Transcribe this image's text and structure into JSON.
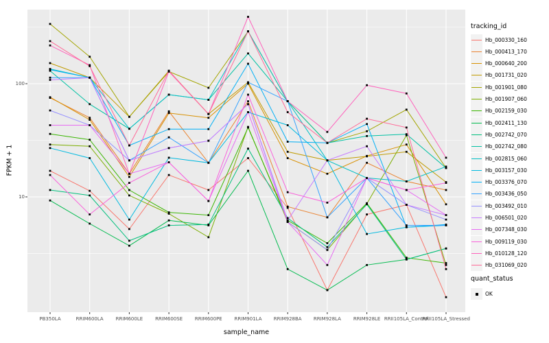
{
  "page": {
    "background": "#FFFFFF",
    "panel_background": "#EBEBEB",
    "gridline_color": "#FFFFFF",
    "axis_text_color": "#4D4D4D",
    "tick_mark_color": "#333333",
    "legend_key_background": "#F2F2F2"
  },
  "axes": {
    "x_title": "sample_name",
    "y_title": "FPKM + 1"
  },
  "legend": {
    "tracking_title": "tracking_id",
    "quant_title": "quant_status",
    "quant_entries": [
      {
        "label": "OK",
        "marker": "black-square"
      }
    ]
  },
  "chart_data": {
    "type": "line",
    "title": "",
    "xlabel": "sample_name",
    "ylabel": "FPKM + 1",
    "y_scale": "log10",
    "ylim": [
      0.96,
      452
    ],
    "y_major_ticks": [
      {
        "label": "100",
        "value": 100
      },
      {
        "label": "10",
        "value": 10
      }
    ],
    "y_minor_gridlines": [
      316.23,
      31.62,
      3.16
    ],
    "grid": true,
    "legend_position": "right",
    "marker": "black-square",
    "point_status": "OK",
    "categories": [
      "PB350LA",
      "RRIM600LA",
      "RRIM600LE",
      "RRIM600SE",
      "RRIM600PE",
      "RRIM901LA",
      "RRIM928BA",
      "RRIM928LA",
      "RRIM928LE",
      "RRII105LA_Control",
      "RRII105LA_Stressed"
    ],
    "series": [
      {
        "name": "Hb_000330_160",
        "color": "#F8766D",
        "values": [
          17,
          11.3,
          5.2,
          15.6,
          11.5,
          22,
          8,
          1.5,
          7,
          8.5,
          1.3
        ]
      },
      {
        "name": "Hb_000413_170",
        "color": "#EA8331",
        "values": [
          75,
          50,
          16,
          57,
          20,
          70,
          8.2,
          6.6,
          20,
          13.7,
          11.5
        ]
      },
      {
        "name": "Hb_000640_200",
        "color": "#D89000",
        "values": [
          76,
          48,
          15,
          55,
          50,
          100,
          22,
          16,
          23,
          29,
          8.6
        ]
      },
      {
        "name": "Hb_001731_020",
        "color": "#C09B00",
        "values": [
          152,
          113,
          51,
          130,
          54,
          103,
          25,
          21,
          22.8,
          25,
          13.5
        ]
      },
      {
        "name": "Hb_001901_080",
        "color": "#A3A500",
        "values": [
          337,
          173,
          51,
          128,
          92,
          290,
          70,
          30,
          38,
          59,
          18
        ]
      },
      {
        "name": "Hb_001907_060",
        "color": "#7CAE00",
        "values": [
          29,
          28,
          10.3,
          7.1,
          4.4,
          41.5,
          6,
          3.4,
          8.7,
          35,
          2.5
        ]
      },
      {
        "name": "Hb_002159_030",
        "color": "#39B600",
        "values": [
          36,
          32,
          11.5,
          7.3,
          6.9,
          41,
          6.2,
          3.9,
          8.8,
          2.9,
          2.6
        ]
      },
      {
        "name": "Hb_002411_130",
        "color": "#00BB4E",
        "values": [
          9.3,
          5.8,
          3.7,
          6.2,
          5.6,
          17,
          2.3,
          1.5,
          2.5,
          2.8,
          3.5
        ]
      },
      {
        "name": "Hb_002742_070",
        "color": "#00BF7D",
        "values": [
          11.5,
          10.3,
          4.1,
          5.6,
          5.7,
          26.7,
          6.5,
          3.6,
          8.6,
          2.8,
          3.5
        ]
      },
      {
        "name": "Hb_002742_080",
        "color": "#00C1A3",
        "values": [
          130,
          66,
          40,
          80,
          72,
          185,
          70,
          30,
          34.5,
          35.8,
          18
        ]
      },
      {
        "name": "Hb_002815_060",
        "color": "#00BFC4",
        "values": [
          135,
          113,
          40,
          80,
          72,
          290,
          70,
          21,
          14.7,
          13.7,
          18.5
        ]
      },
      {
        "name": "Hb_003157_030",
        "color": "#00BAE0",
        "values": [
          27,
          22,
          6.3,
          22.2,
          20,
          56,
          43,
          21,
          4.7,
          5.4,
          5.6
        ]
      },
      {
        "name": "Hb_003376_070",
        "color": "#00B0F6",
        "values": [
          133,
          113,
          28.5,
          39.7,
          39.7,
          150,
          30.7,
          30,
          44,
          5.4,
          5.7
        ]
      },
      {
        "name": "Hb_003436_050",
        "color": "#35A2FF",
        "values": [
          113,
          113,
          21,
          33.6,
          20,
          103,
          70,
          6.6,
          14.7,
          5.6,
          5.6
        ]
      },
      {
        "name": "Hb_003492_010",
        "color": "#9590FF",
        "values": [
          58,
          43,
          21,
          27,
          31.3,
          66,
          6,
          3.4,
          14.7,
          8.5,
          6.3
        ]
      },
      {
        "name": "Hb_006501_020",
        "color": "#C77CFF",
        "values": [
          108,
          113,
          21,
          27,
          31.3,
          66,
          6.2,
          21,
          28,
          8.5,
          6.9
        ]
      },
      {
        "name": "Hb_007348_030",
        "color": "#E76BF3",
        "values": [
          43,
          43,
          16,
          20.2,
          9.2,
          56,
          6,
          2.5,
          14.7,
          11.5,
          6.9
        ]
      },
      {
        "name": "Hb_009119_030",
        "color": "#FA62DB",
        "values": [
          15.6,
          7,
          13.3,
          20.2,
          9.2,
          80,
          11,
          8.9,
          14.7,
          11.5,
          13.3
        ]
      },
      {
        "name": "Hb_010128_120",
        "color": "#FF62BC",
        "values": [
          218,
          146,
          16,
          128,
          54,
          390,
          70,
          37.5,
          97,
          82,
          22.2
        ]
      },
      {
        "name": "Hb_031069_020",
        "color": "#FF6A98",
        "values": [
          238,
          143,
          28.5,
          130,
          54,
          290,
          56,
          30,
          49,
          41,
          2.3
        ]
      }
    ]
  }
}
